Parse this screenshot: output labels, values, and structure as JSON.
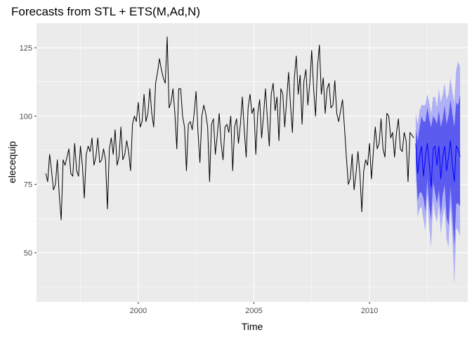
{
  "chart_data": {
    "type": "line",
    "title": "Forecasts from STL +  ETS(M,Ad,N)",
    "xlabel": "Time",
    "ylabel": "elecequip",
    "xlim": [
      1995.6,
      2014.25
    ],
    "ylim": [
      32,
      134
    ],
    "x_ticks": [
      2000,
      2005,
      2010
    ],
    "y_ticks": [
      50,
      75,
      100,
      125
    ],
    "grid": true,
    "legend": "none",
    "colors": {
      "panel_bg": "#ebebeb",
      "grid_major": "#ffffff",
      "observed": "#000000",
      "point_forecast": "#0000ff",
      "pi80": "#5b5bf0",
      "pi95": "#b0b0f6"
    },
    "series": [
      {
        "start": 1996.0,
        "frequency": 12,
        "values": [
          79,
          76,
          86,
          80,
          73,
          75,
          84,
          71,
          62,
          84,
          82,
          85,
          88,
          79,
          78,
          90,
          80,
          78,
          89,
          82,
          70,
          86,
          89,
          87,
          92,
          82,
          85,
          92,
          83,
          84,
          88,
          84,
          66,
          88,
          92,
          86,
          95,
          82,
          85,
          96,
          84,
          86,
          91,
          87,
          80,
          97,
          100,
          98,
          105,
          96,
          98,
          108,
          98,
          101,
          110,
          101,
          96,
          112,
          116,
          121,
          117,
          114,
          112,
          129,
          103,
          105,
          110,
          101,
          88,
          110,
          110,
          100,
          96,
          80,
          97,
          98,
          95,
          101,
          109,
          94,
          83,
          100,
          104,
          101,
          96,
          76,
          97,
          99,
          86,
          93,
          101,
          90,
          84,
          96,
          97,
          94,
          100,
          80,
          96,
          99,
          90,
          97,
          107,
          95,
          85,
          103,
          108,
          101,
          103,
          86,
          101,
          106,
          92,
          100,
          110,
          99,
          89,
          108,
          112,
          102,
          107,
          91,
          110,
          108,
          96,
          106,
          116,
          104,
          94,
          114,
          122,
          108,
          115,
          97,
          113,
          117,
          104,
          112,
          124,
          110,
          100,
          118,
          126,
          108,
          114,
          101,
          110,
          112,
          103,
          104,
          113,
          101,
          98,
          102,
          106,
          96,
          85,
          75,
          77,
          86,
          73,
          79,
          87,
          79,
          65,
          80,
          84,
          82,
          90,
          77,
          87,
          96,
          88,
          90,
          99,
          88,
          85,
          101,
          100,
          92,
          94,
          85,
          94,
          99,
          88,
          87,
          94,
          91,
          76,
          94,
          93,
          92
        ]
      },
      {
        "start": 2012.0,
        "frequency": 12,
        "values": [
          90,
          79,
          85,
          89,
          78,
          85,
          90,
          83,
          74,
          88,
          89,
          82,
          89,
          77,
          85,
          89,
          80,
          85,
          91,
          82,
          76,
          89,
          88,
          85
        ]
      }
    ],
    "intervals": {
      "80": {
        "lower": [
          83,
          69,
          72,
          72,
          70,
          65,
          77,
          67,
          62,
          76,
          72,
          68,
          73,
          64,
          71,
          75,
          63,
          60,
          74,
          64,
          52,
          68,
          68,
          67
        ],
        "upper": [
          95,
          91,
          96,
          100,
          98,
          98,
          103,
          99,
          96,
          100,
          99,
          97,
          102,
          96,
          99,
          104,
          97,
          100,
          106,
          101,
          96,
          105,
          104,
          108
        ]
      },
      "95": {
        "lower": [
          80,
          63,
          66,
          67,
          62,
          58,
          71,
          59,
          52,
          69,
          64,
          61,
          68,
          57,
          63,
          67,
          55,
          52,
          67,
          56,
          38,
          59,
          58,
          56
        ],
        "upper": [
          101,
          97,
          102,
          104,
          104,
          104,
          108,
          105,
          101,
          107,
          107,
          103,
          110,
          105,
          108,
          112,
          106,
          108,
          114,
          109,
          105,
          117,
          120,
          118
        ]
      }
    }
  }
}
